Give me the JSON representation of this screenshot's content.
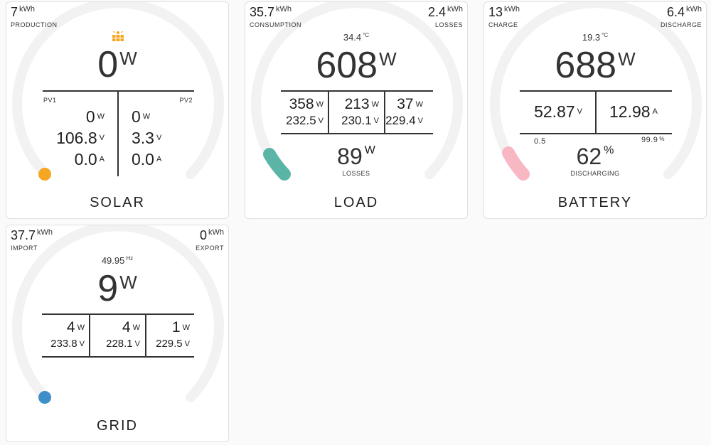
{
  "colors": {
    "solar_dot": "#f5a623",
    "load_dot": "#5bb5a7",
    "battery_dot": "#f7b8c4",
    "grid_dot": "#3e8fc9",
    "arc": "#f2f2f2"
  },
  "solar": {
    "title": "SOLAR",
    "production_value": "7",
    "production_unit": "kWh",
    "production_label": "PRODUCTION",
    "icon": "solar-panel-icon",
    "power_value": "0",
    "power_unit": "W",
    "pv1_label": "PV1",
    "pv2_label": "PV2",
    "pv1": {
      "power": "0",
      "power_unit": "W",
      "voltage": "106.8",
      "voltage_unit": "V",
      "current": "0.0",
      "current_unit": "A"
    },
    "pv2": {
      "power": "0",
      "power_unit": "W",
      "voltage": "3.3",
      "voltage_unit": "V",
      "current": "0.0",
      "current_unit": "A"
    }
  },
  "load": {
    "title": "LOAD",
    "consumption_value": "35.7",
    "consumption_unit": "kWh",
    "consumption_label": "CONSUMPTION",
    "losses_value": "2.4",
    "losses_unit": "kWh",
    "losses_label": "LOSSES",
    "temp_value": "34.4",
    "temp_unit": "°C",
    "power_value": "608",
    "power_unit": "W",
    "phases": [
      {
        "power": "358",
        "power_unit": "W",
        "voltage": "232.5",
        "voltage_unit": "V"
      },
      {
        "power": "213",
        "power_unit": "W",
        "voltage": "230.1",
        "voltage_unit": "V"
      },
      {
        "power": "37",
        "power_unit": "W",
        "voltage": "229.4",
        "voltage_unit": "V"
      }
    ],
    "loss_power_value": "89",
    "loss_power_unit": "W",
    "loss_power_label": "LOSSES"
  },
  "battery": {
    "title": "BATTERY",
    "charge_value": "13",
    "charge_unit": "kWh",
    "charge_label": "CHARGE",
    "discharge_value": "6.4",
    "discharge_unit": "kWh",
    "discharge_label": "DISCHARGE",
    "temp_value": "19.3",
    "temp_unit": "°C",
    "power_value": "688",
    "power_unit": "W",
    "voltage": "52.87",
    "voltage_unit": "V",
    "current": "12.98",
    "current_unit": "A",
    "min_label": "0.5",
    "max_label": "99.9",
    "max_unit": "%",
    "soc_value": "62",
    "soc_unit": "%",
    "state_label": "DISCHARGING"
  },
  "grid": {
    "title": "GRID",
    "import_value": "37.7",
    "import_unit": "kWh",
    "import_label": "IMPORT",
    "export_value": "0",
    "export_unit": "kWh",
    "export_label": "EXPORT",
    "freq_value": "49.95",
    "freq_unit": "Hz",
    "power_value": "9",
    "power_unit": "W",
    "phases": [
      {
        "power": "4",
        "power_unit": "W",
        "voltage": "233.8",
        "voltage_unit": "V"
      },
      {
        "power": "4",
        "power_unit": "W",
        "voltage": "228.1",
        "voltage_unit": "V"
      },
      {
        "power": "1",
        "power_unit": "W",
        "voltage": "229.5",
        "voltage_unit": "V"
      }
    ]
  }
}
